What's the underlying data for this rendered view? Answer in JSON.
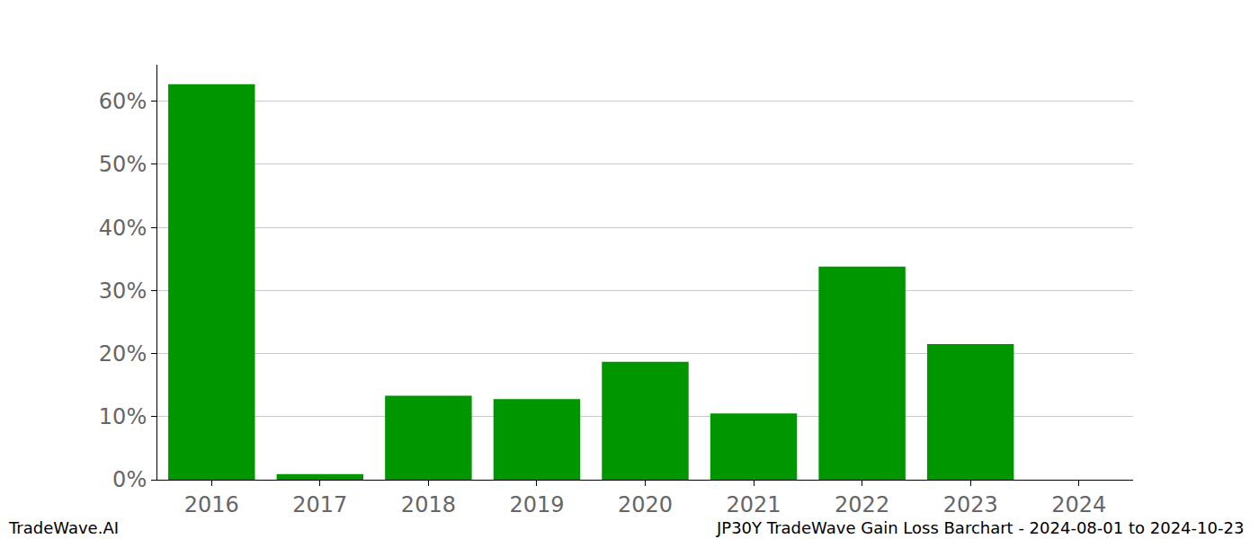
{
  "chart_data": {
    "type": "bar",
    "title": "JP30Y TradeWave Gain Loss Barchart - 2024-08-01 to 2024-10-23",
    "annotations": [
      "TradeWave.AI"
    ],
    "categories": [
      "2016",
      "2017",
      "2018",
      "2019",
      "2020",
      "2021",
      "2022",
      "2023",
      "2024"
    ],
    "values": [
      62.7,
      0.9,
      13.3,
      12.8,
      18.7,
      10.5,
      33.8,
      21.5,
      0
    ],
    "color": "#009600",
    "ylim": [
      0,
      65.8
    ],
    "yticks": [
      {
        "value": 0,
        "label": "0%"
      },
      {
        "value": 10,
        "label": "10%"
      },
      {
        "value": 20,
        "label": "20%"
      },
      {
        "value": 30,
        "label": "30%"
      },
      {
        "value": 40,
        "label": "40%"
      },
      {
        "value": 50,
        "label": "50%"
      },
      {
        "value": 60,
        "label": "60%"
      }
    ],
    "grid": true
  }
}
